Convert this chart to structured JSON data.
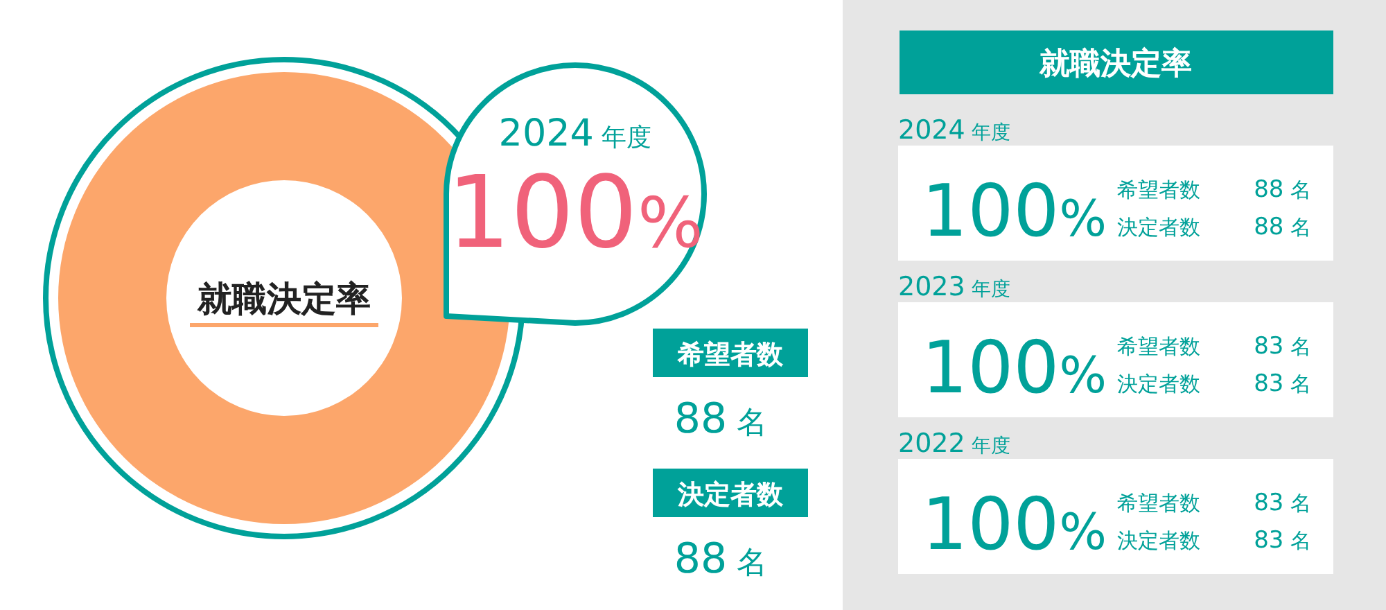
{
  "chart_data": [
    {
      "type": "donut",
      "title": "就職決定率",
      "categories": [
        null
      ],
      "values": [
        100
      ],
      "colors": [
        "#fca66b"
      ],
      "value_labels": [
        "100%"
      ],
      "annotations": [
        "2024 年度",
        "希望者数",
        "88 名",
        "決定者数",
        "88 名"
      ]
    },
    {
      "type": "other",
      "title": "就職決定率",
      "annotations": [
        "2024 年度",
        "100%",
        "希望者数",
        "88 名",
        "決定者数",
        "88 名",
        "2023 年度",
        "100%",
        "希望者数",
        "83 名",
        "決定者数",
        "83 名",
        "2022 年度",
        "100%",
        "希望者数",
        "83 名",
        "決定者数",
        "83 名"
      ]
    }
  ]
}
